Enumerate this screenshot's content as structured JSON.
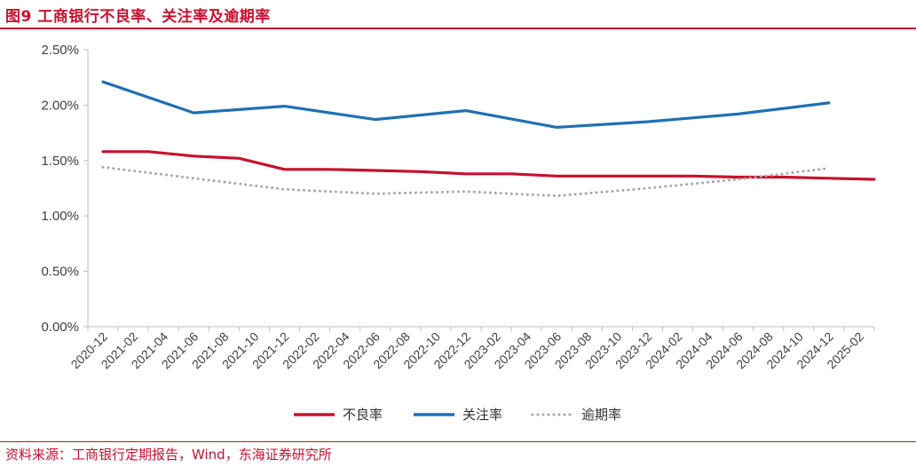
{
  "figure": {
    "title": "图9  工商银行不良率、关注率及逾期率",
    "source": "资料来源：工商银行定期报告，Wind，东海证券研究所"
  },
  "colors": {
    "accent": "#c8102e",
    "axis": "#bfbfbf"
  },
  "chart_data": {
    "type": "line",
    "title": "",
    "xlabel": "",
    "ylabel": "",
    "ylim": [
      0,
      0.025
    ],
    "yticks": [
      "0.00%",
      "0.50%",
      "1.00%",
      "1.50%",
      "2.00%",
      "2.50%"
    ],
    "y_format": "percent",
    "grid": false,
    "legend_position": "bottom",
    "categories": [
      "2020-12",
      "2021-02",
      "2021-04",
      "2021-06",
      "2021-08",
      "2021-10",
      "2021-12",
      "2022-02",
      "2022-04",
      "2022-06",
      "2022-08",
      "2022-10",
      "2022-12",
      "2023-02",
      "2023-04",
      "2023-06",
      "2023-08",
      "2023-10",
      "2023-12",
      "2024-02",
      "2024-04",
      "2024-06",
      "2024-08",
      "2024-10",
      "2024-12",
      "2025-02"
    ],
    "series": [
      {
        "name": "不良率",
        "color": "#c8102e",
        "style": "solid",
        "points": [
          {
            "x": "2020-12",
            "y": 0.0158
          },
          {
            "x": "2021-03",
            "y": 0.0158
          },
          {
            "x": "2021-06",
            "y": 0.0154
          },
          {
            "x": "2021-09",
            "y": 0.0152
          },
          {
            "x": "2021-12",
            "y": 0.0142
          },
          {
            "x": "2022-03",
            "y": 0.0142
          },
          {
            "x": "2022-06",
            "y": 0.0141
          },
          {
            "x": "2022-09",
            "y": 0.014
          },
          {
            "x": "2022-12",
            "y": 0.0138
          },
          {
            "x": "2023-03",
            "y": 0.0138
          },
          {
            "x": "2023-06",
            "y": 0.0136
          },
          {
            "x": "2023-09",
            "y": 0.0136
          },
          {
            "x": "2023-12",
            "y": 0.0136
          },
          {
            "x": "2024-03",
            "y": 0.0136
          },
          {
            "x": "2024-06",
            "y": 0.0135
          },
          {
            "x": "2024-09",
            "y": 0.0135
          },
          {
            "x": "2024-12",
            "y": 0.0134
          },
          {
            "x": "2025-03",
            "y": 0.0133
          }
        ]
      },
      {
        "name": "关注率",
        "color": "#1f6fb5",
        "style": "solid",
        "points": [
          {
            "x": "2020-12",
            "y": 0.0221
          },
          {
            "x": "2021-06",
            "y": 0.0193
          },
          {
            "x": "2021-12",
            "y": 0.0199
          },
          {
            "x": "2022-06",
            "y": 0.0187
          },
          {
            "x": "2022-12",
            "y": 0.0195
          },
          {
            "x": "2023-06",
            "y": 0.018
          },
          {
            "x": "2023-12",
            "y": 0.0185
          },
          {
            "x": "2024-06",
            "y": 0.0192
          },
          {
            "x": "2024-12",
            "y": 0.0202
          }
        ]
      },
      {
        "name": "逾期率",
        "color": "#a6a6a6",
        "style": "dotted",
        "points": [
          {
            "x": "2020-12",
            "y": 0.0144
          },
          {
            "x": "2021-06",
            "y": 0.0134
          },
          {
            "x": "2021-12",
            "y": 0.0124
          },
          {
            "x": "2022-06",
            "y": 0.012
          },
          {
            "x": "2022-12",
            "y": 0.0122
          },
          {
            "x": "2023-06",
            "y": 0.0118
          },
          {
            "x": "2023-12",
            "y": 0.0125
          },
          {
            "x": "2024-06",
            "y": 0.0133
          },
          {
            "x": "2024-12",
            "y": 0.0143
          }
        ]
      }
    ]
  }
}
